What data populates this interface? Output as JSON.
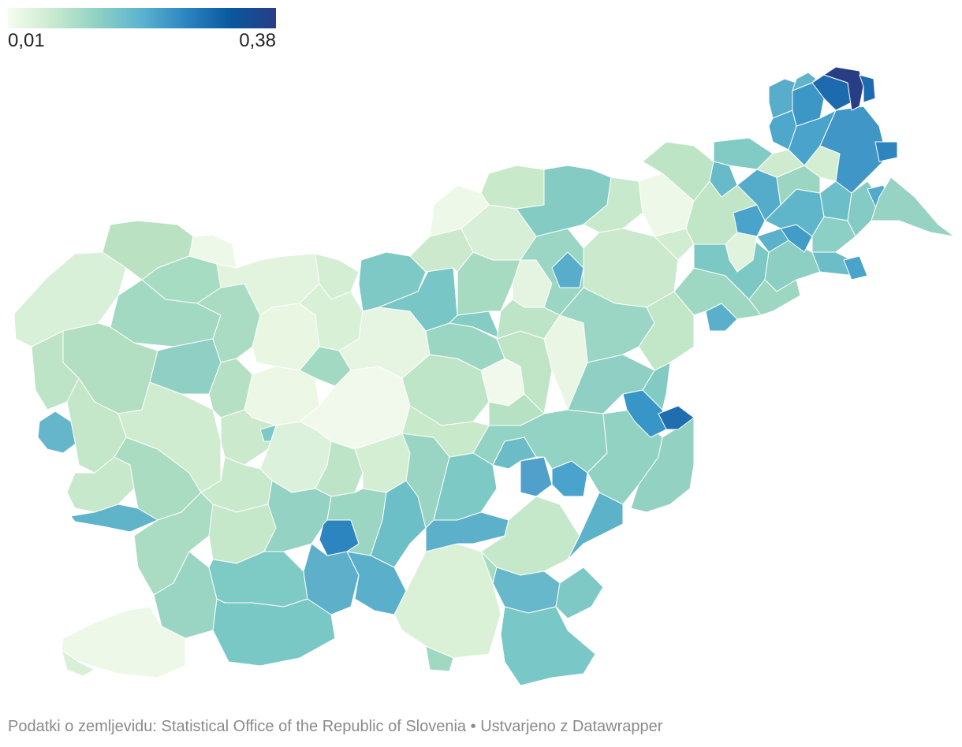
{
  "legend": {
    "min_label": "0,01",
    "max_label": "0,38",
    "min_value": 0.01,
    "max_value": 0.38,
    "gradient_colors": [
      "#f7fcf0",
      "#c9ead0",
      "#8fd1c3",
      "#5bb3d0",
      "#2b84bf",
      "#08589e",
      "#283d86"
    ]
  },
  "footer": {
    "source_text": "Podatki o zemljevidu: Statistical Office of the Republic of Slovenia",
    "separator": "•",
    "credit_text": "Ustvarjeno z Datawrapper"
  }
}
